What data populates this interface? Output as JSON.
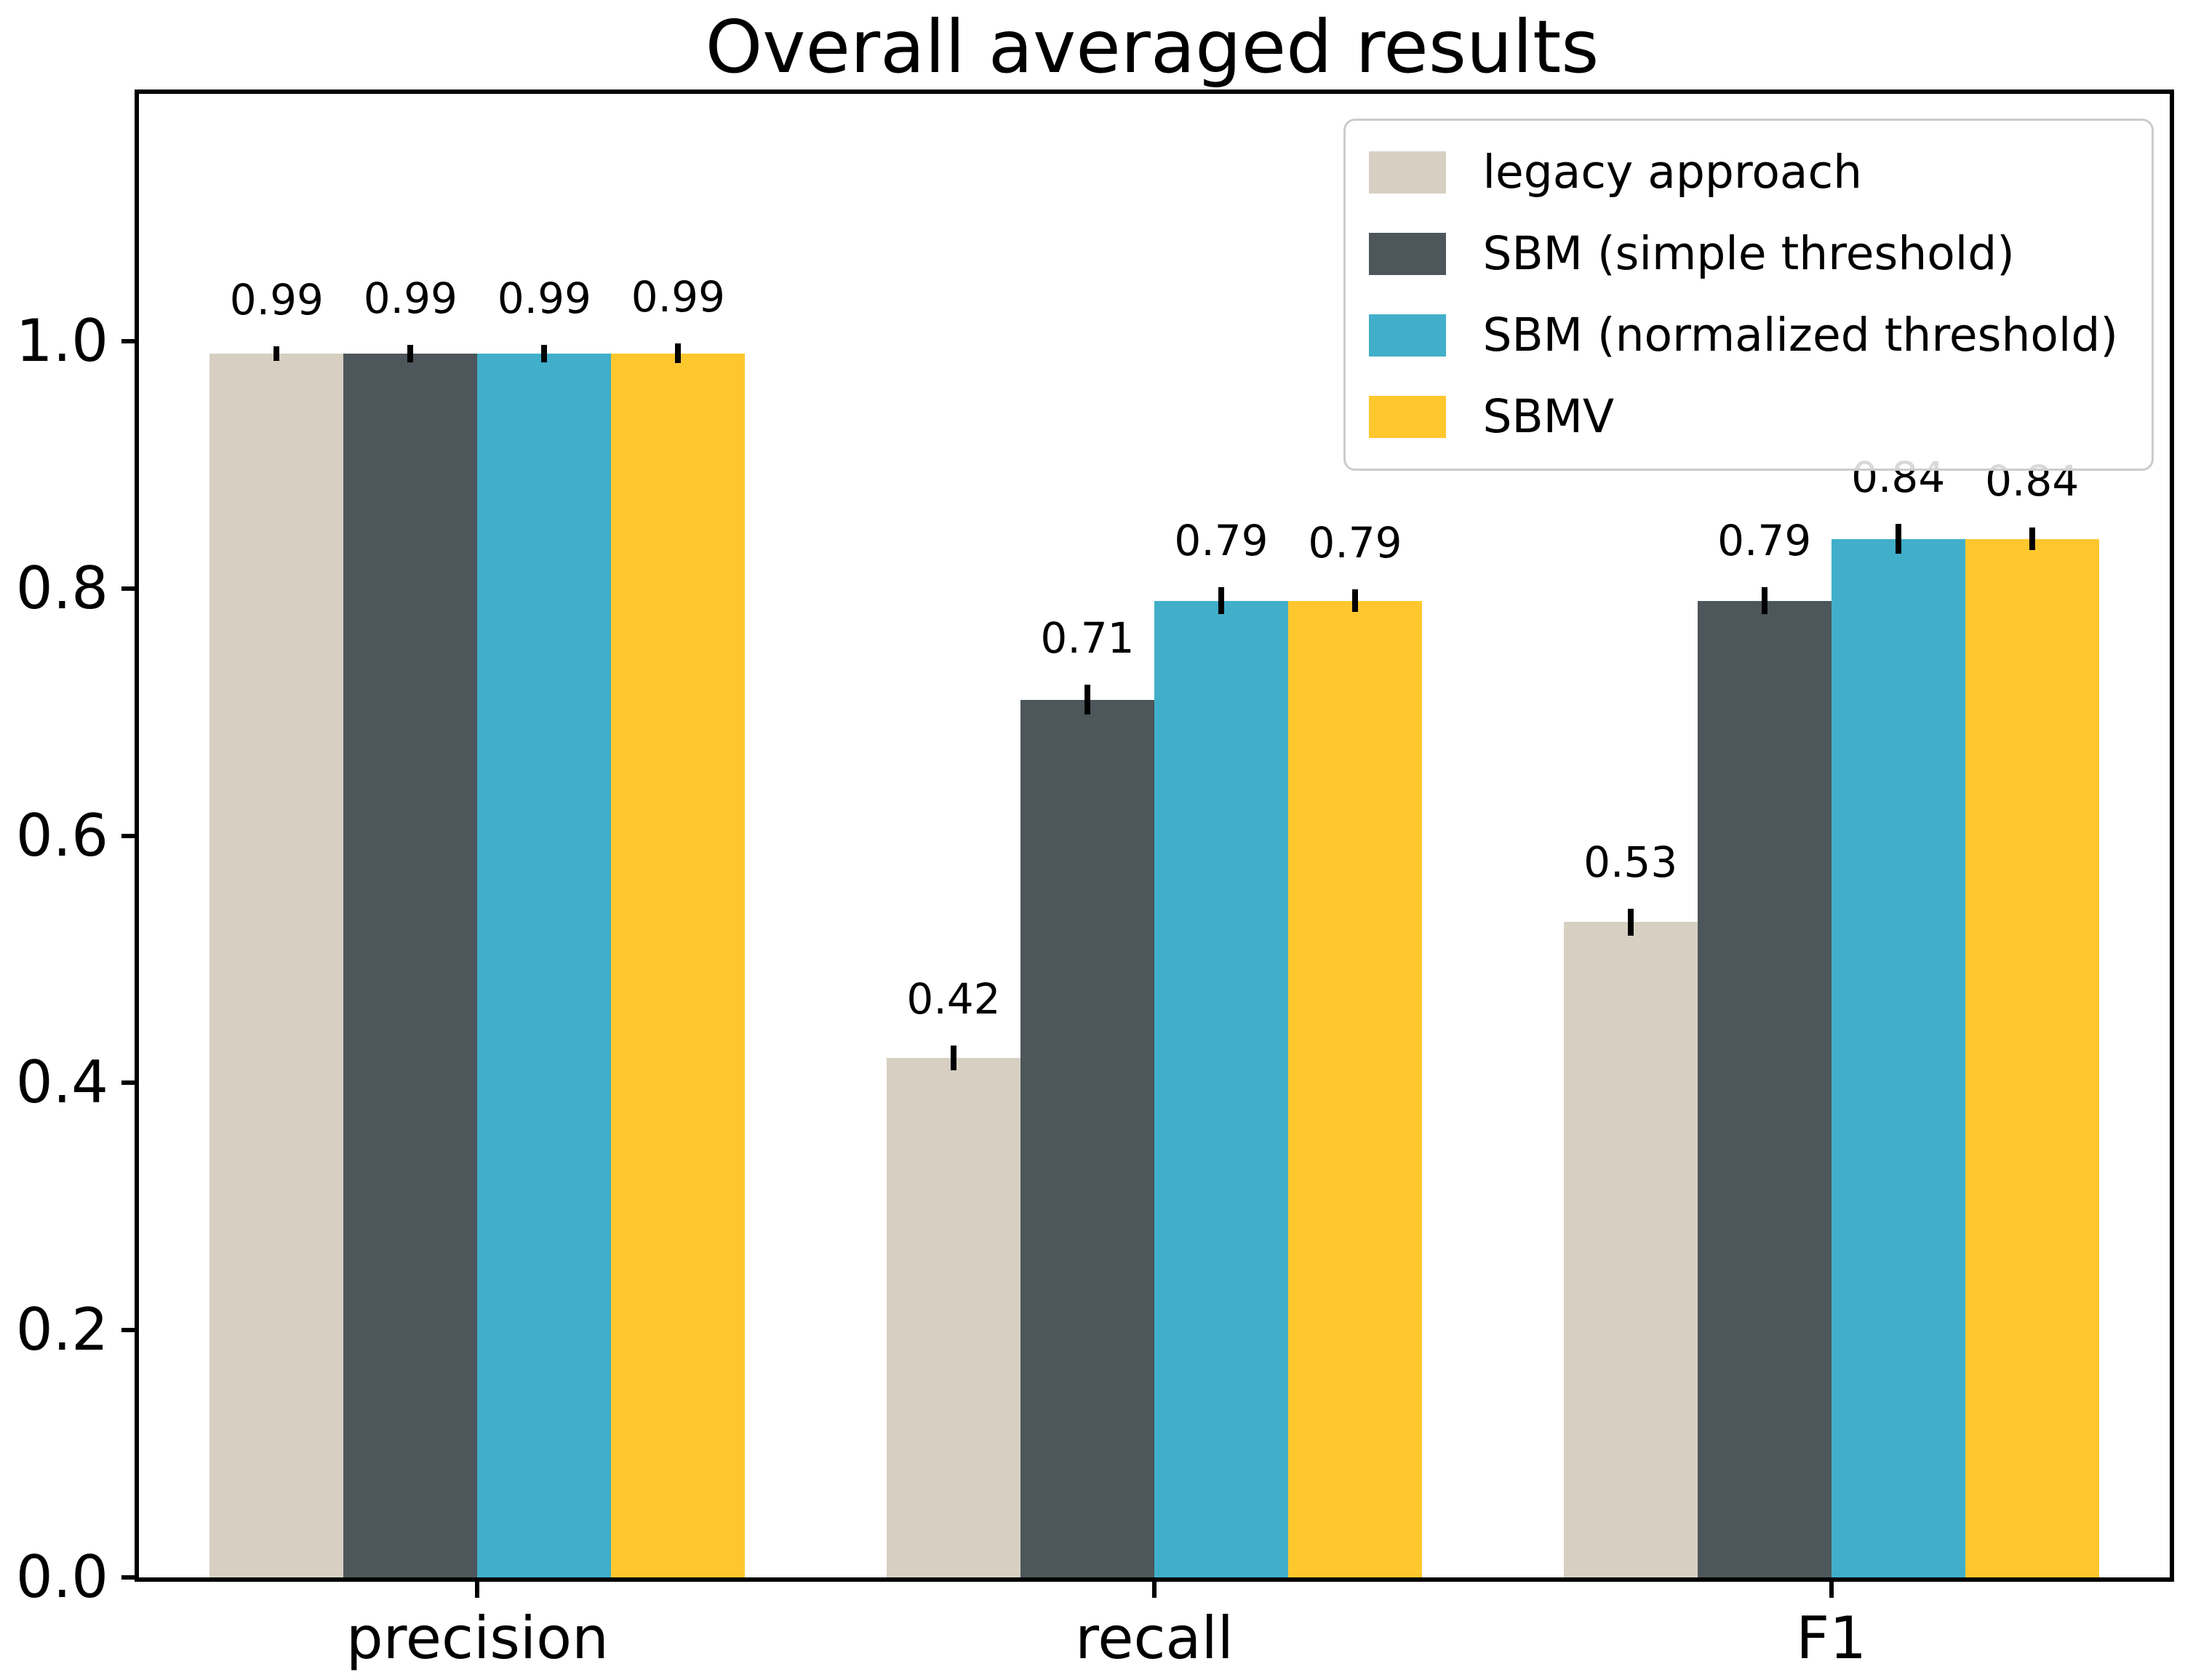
{
  "chart_data": {
    "type": "bar",
    "title": "Overall averaged results",
    "categories": [
      "precision",
      "recall",
      "F1"
    ],
    "series": [
      {
        "name": "legacy approach",
        "color": "#d7d0c2",
        "values": [
          0.99,
          0.42,
          0.53
        ],
        "labels": [
          "0.99",
          "0.42",
          "0.53"
        ],
        "errors": [
          0.006,
          0.01,
          0.011
        ]
      },
      {
        "name": "SBM (simple threshold)",
        "color": "#4d565a",
        "values": [
          0.99,
          0.71,
          0.79
        ],
        "labels": [
          "0.99",
          "0.71",
          "0.79"
        ],
        "errors": [
          0.007,
          0.012,
          0.011
        ]
      },
      {
        "name": "SBM (normalized threshold)",
        "color": "#41afc9",
        "values": [
          0.99,
          0.79,
          0.84
        ],
        "labels": [
          "0.99",
          "0.79",
          "0.84"
        ],
        "errors": [
          0.007,
          0.011,
          0.012
        ]
      },
      {
        "name": "SBMV",
        "color": "#fec72e",
        "values": [
          0.99,
          0.79,
          0.84
        ],
        "labels": [
          "0.99",
          "0.79",
          "0.84"
        ],
        "errors": [
          0.008,
          0.009,
          0.009
        ]
      }
    ],
    "y_ticks": [
      "0.0",
      "0.2",
      "0.4",
      "0.6",
      "0.8",
      "1.0"
    ],
    "y_tick_values": [
      0.0,
      0.2,
      0.4,
      0.6,
      0.8,
      1.0
    ],
    "ylim": [
      0.0,
      1.2
    ],
    "xlabel": "",
    "ylabel": "",
    "grid": false,
    "legend_position": "upper right",
    "bar_color_black": "#000000",
    "legend_border_color": "#cccccc"
  }
}
